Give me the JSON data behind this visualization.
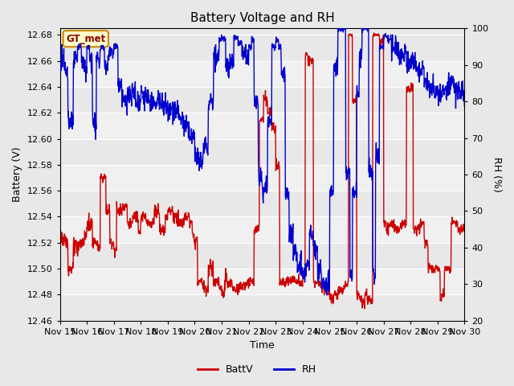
{
  "title": "Battery Voltage and RH",
  "xlabel": "Time",
  "ylabel_left": "Battery (V)",
  "ylabel_right": "RH (%)",
  "annotation_text": "GT_met",
  "legend_labels": [
    "BattV",
    "RH"
  ],
  "legend_colors": [
    "#cc0000",
    "#0000cc"
  ],
  "battv_color": "#cc0000",
  "rh_color": "#0000cc",
  "xlim_start": 15,
  "xlim_end": 30,
  "ylim_left": [
    12.46,
    12.685
  ],
  "ylim_right": [
    20,
    100
  ],
  "xtick_labels": [
    "Nov 15",
    "Nov 16",
    "Nov 17",
    "Nov 18",
    "Nov 19",
    "Nov 20",
    "Nov 21",
    "Nov 22",
    "Nov 23",
    "Nov 24",
    "Nov 25",
    "Nov 26",
    "Nov 27",
    "Nov 28",
    "Nov 29",
    "Nov 30"
  ],
  "yticks_left": [
    12.46,
    12.48,
    12.5,
    12.52,
    12.54,
    12.56,
    12.58,
    12.6,
    12.62,
    12.64,
    12.66,
    12.68
  ],
  "yticks_right": [
    20,
    30,
    40,
    50,
    60,
    70,
    80,
    90,
    100
  ],
  "bg_color": "#e8e8e8",
  "stripe_light": "#f0f0f0",
  "stripe_dark": "#d8d8d8",
  "grid_color": "#ffffff",
  "title_fontsize": 11,
  "label_fontsize": 9,
  "tick_fontsize": 8,
  "annotation_bg": "#ffffcc",
  "annotation_border": "#cc8800",
  "linewidth": 1.0
}
